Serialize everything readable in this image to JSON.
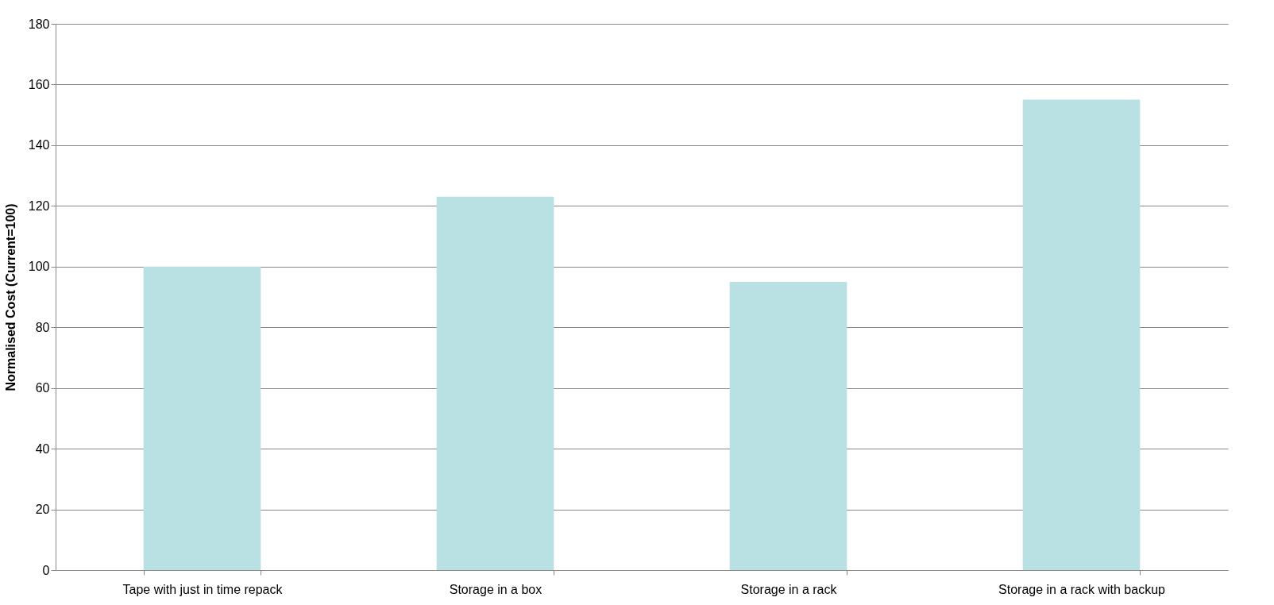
{
  "chart_data": {
    "type": "bar",
    "ylabel": "Normalised Cost (Current=100)",
    "categories": [
      "Tape with just in time repack",
      "Storage in a box",
      "Storage in a rack",
      "Storage in a rack with backup"
    ],
    "values": [
      100,
      123,
      95,
      155
    ],
    "color": "#b9e0e2",
    "ylim": [
      0,
      180
    ],
    "yticks": [
      0,
      20,
      40,
      60,
      80,
      100,
      120,
      140,
      160,
      180
    ],
    "grid": "y",
    "legend": false
  }
}
